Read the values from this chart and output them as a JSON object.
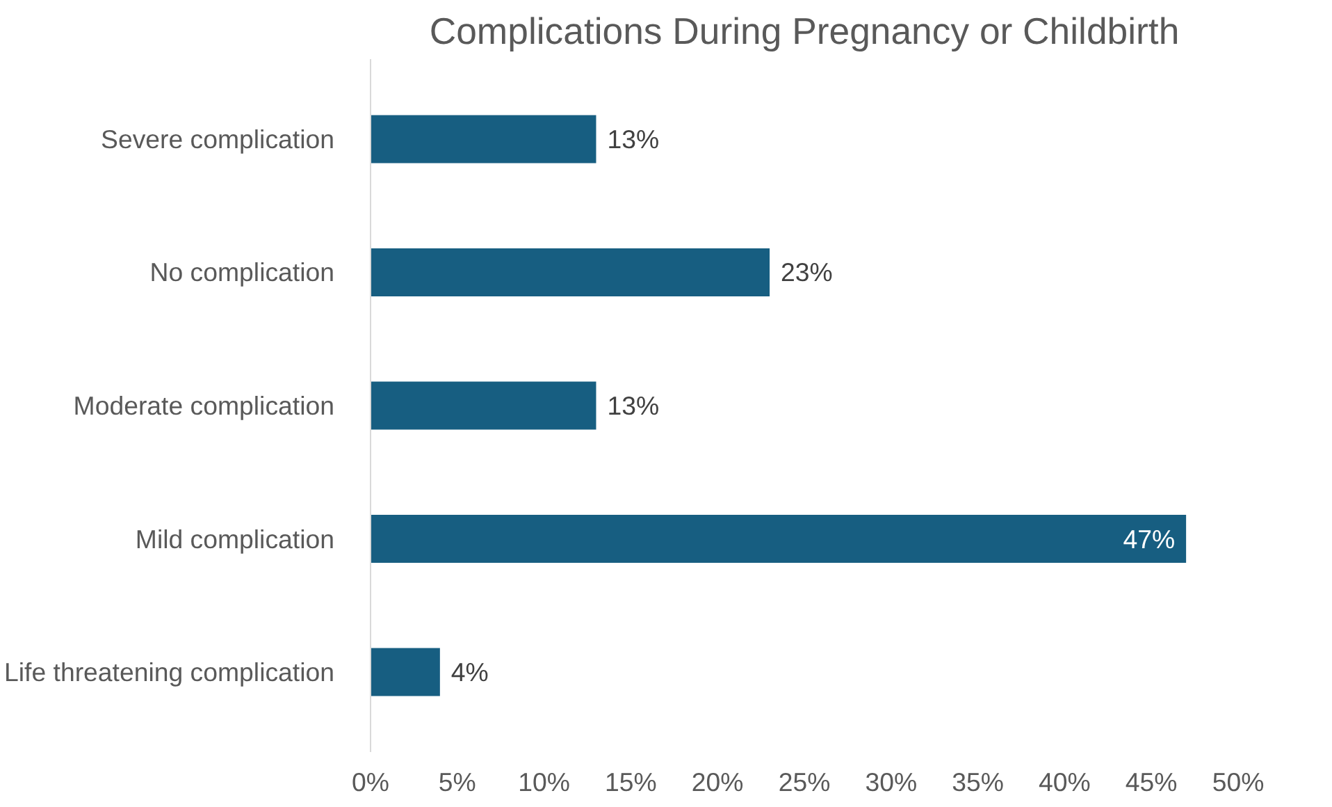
{
  "chart_data": {
    "type": "bar",
    "orientation": "horizontal",
    "title": "Complications During Pregnancy or Childbirth",
    "categories": [
      "Severe complication",
      "No complication",
      "Moderate complication",
      "Mild complication",
      "Life threatening complication"
    ],
    "values": [
      13,
      23,
      13,
      47,
      4
    ],
    "value_labels": [
      "13%",
      "23%",
      "13%",
      "47%",
      "4%"
    ],
    "color": "#175e81",
    "xlim": [
      0,
      50
    ],
    "xticks": [
      {
        "value": 0,
        "label": "0%"
      },
      {
        "value": 5,
        "label": "5%"
      },
      {
        "value": 10,
        "label": "10%"
      },
      {
        "value": 15,
        "label": "15%"
      },
      {
        "value": 20,
        "label": "20%"
      },
      {
        "value": 25,
        "label": "25%"
      },
      {
        "value": 30,
        "label": "30%"
      },
      {
        "value": 35,
        "label": "35%"
      },
      {
        "value": 40,
        "label": "40%"
      },
      {
        "value": 45,
        "label": "45%"
      },
      {
        "value": 50,
        "label": "50%"
      }
    ],
    "grid": false
  }
}
